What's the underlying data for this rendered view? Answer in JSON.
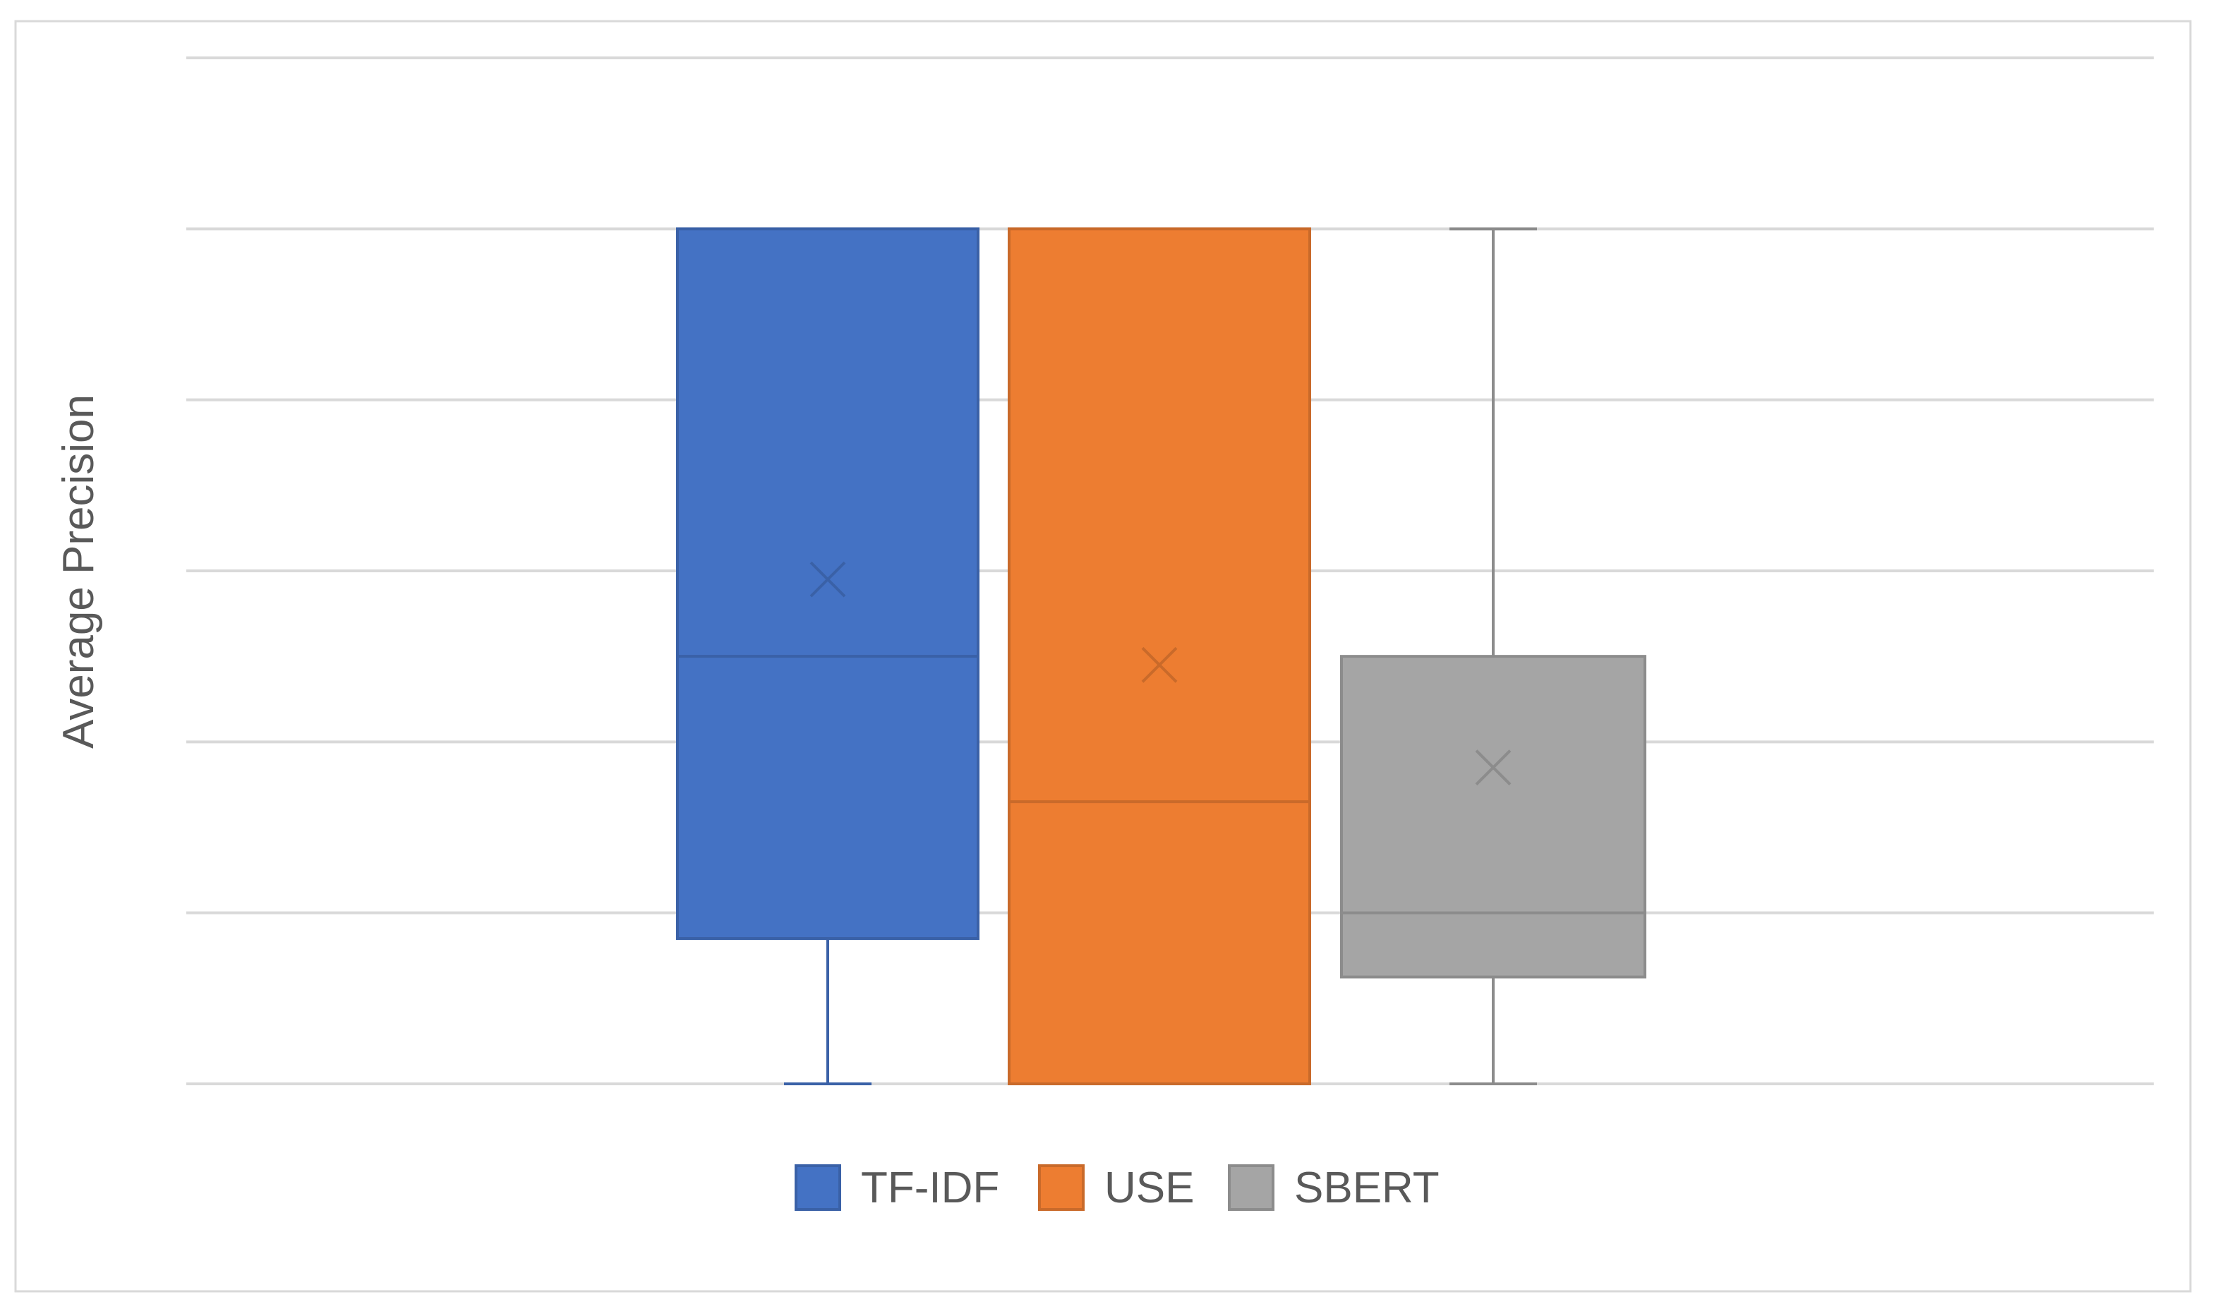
{
  "chart_data": {
    "type": "box",
    "title": "",
    "xlabel": "",
    "ylabel": "Average Precision",
    "ylim": [
      0,
      1.2
    ],
    "grid": true,
    "legend_position": "bottom",
    "series": [
      {
        "name": "TF-IDF",
        "color": "#4472C4",
        "min": 0.0,
        "q1": 0.17,
        "median": 0.5,
        "q3": 1.0,
        "max": 1.0,
        "mean": 0.59
      },
      {
        "name": "USE",
        "color": "#ED7D31",
        "min": 0.0,
        "q1": 0.0,
        "median": 0.33,
        "q3": 1.0,
        "max": 1.0,
        "mean": 0.49
      },
      {
        "name": "SBERT",
        "color": "#A5A5A5",
        "min": 0.0,
        "q1": 0.125,
        "median": 0.2,
        "q3": 0.5,
        "max": 1.0,
        "mean": 0.37
      }
    ]
  }
}
